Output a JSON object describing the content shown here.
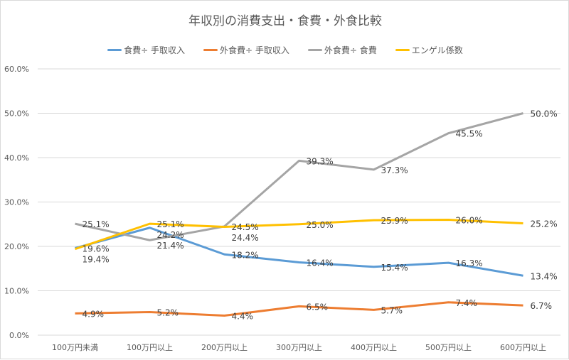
{
  "chart_data": {
    "type": "line",
    "title": "年収別の消費支出・食費・外食比較",
    "categories": [
      "100万円未満",
      "100万円以上",
      "200万円以上",
      "300万円以上",
      "400万円以上",
      "500万円以上",
      "600万円以上"
    ],
    "ylim": [
      0,
      60
    ],
    "yticks": [
      "0.0%",
      "10.0%",
      "20.0%",
      "30.0%",
      "40.0%",
      "50.0%",
      "60.0%"
    ],
    "grid": true,
    "legend": "top",
    "series": [
      {
        "name": "食費÷ 手取収入",
        "color": "#5b9bd5",
        "values": [
          19.6,
          24.2,
          18.2,
          16.4,
          15.4,
          16.3,
          13.4
        ]
      },
      {
        "name": "外食費÷ 手取収入",
        "color": "#ed7d31",
        "values": [
          4.9,
          5.2,
          4.4,
          6.5,
          5.7,
          7.4,
          6.7
        ]
      },
      {
        "name": "外食費÷ 食費",
        "color": "#a5a5a5",
        "values": [
          25.1,
          21.4,
          24.5,
          39.3,
          37.3,
          45.5,
          50.0
        ]
      },
      {
        "name": "エンゲル係数",
        "color": "#ffc000",
        "values": [
          19.4,
          25.1,
          24.4,
          25.0,
          25.9,
          26.0,
          25.2
        ]
      }
    ]
  }
}
